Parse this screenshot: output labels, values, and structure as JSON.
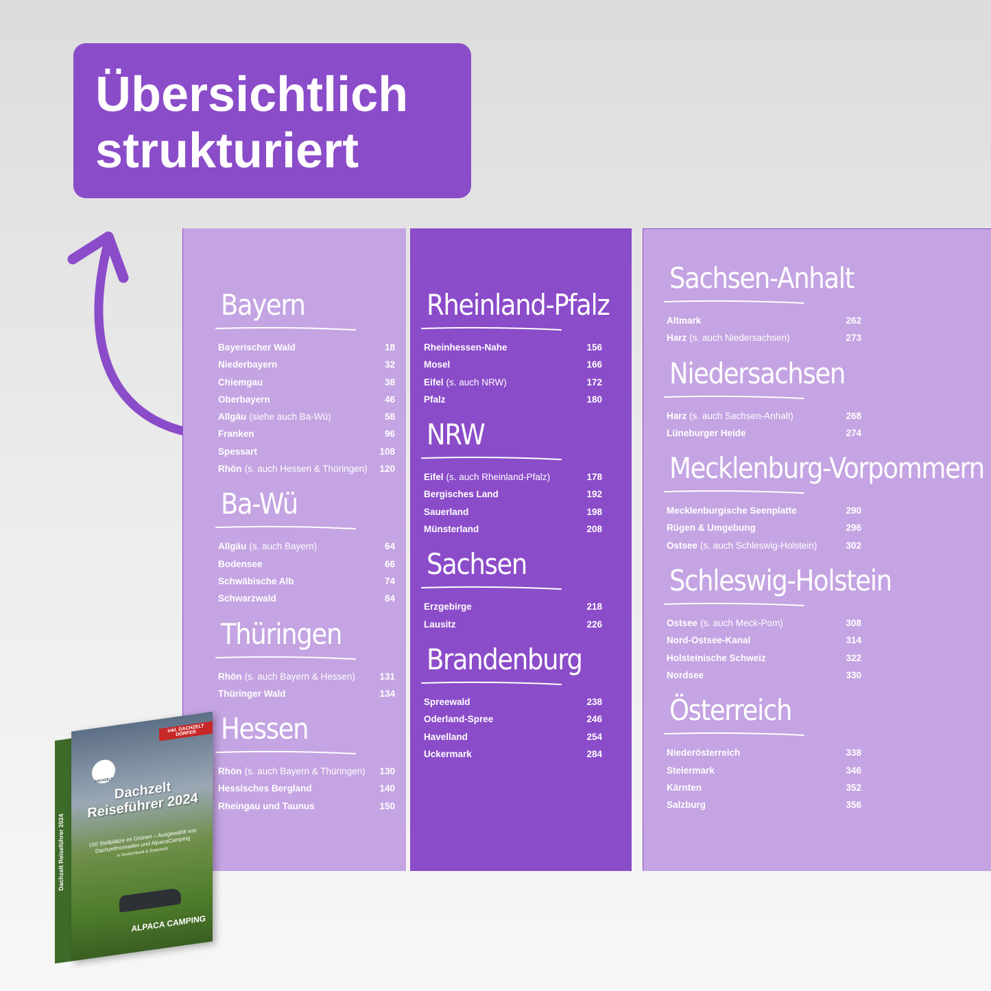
{
  "headline": {
    "line1": "Übersichtlich",
    "line2": "strukturiert"
  },
  "columns": [
    {
      "sections": [
        {
          "title": "Bayern",
          "entries": [
            {
              "name": "Bayerischer Wald",
              "page": 18
            },
            {
              "name": "Niederbayern",
              "page": 32
            },
            {
              "name": "Chiemgau",
              "page": 38
            },
            {
              "name": "Oberbayern",
              "page": 46
            },
            {
              "name": "Allgäu",
              "note": "(siehe auch Ba-Wü)",
              "page": 58
            },
            {
              "name": "Franken",
              "page": 96
            },
            {
              "name": "Spessart",
              "page": 108
            },
            {
              "name": "Rhön",
              "note": "(s. auch Hessen & Thüringen)",
              "page": 120
            }
          ]
        },
        {
          "title": "Ba-Wü",
          "entries": [
            {
              "name": "Allgäu",
              "note": "(s. auch Bayern)",
              "page": 64
            },
            {
              "name": "Bodensee",
              "page": 66
            },
            {
              "name": "Schwäbische Alb",
              "page": 74
            },
            {
              "name": "Schwarzwald",
              "page": 84
            }
          ]
        },
        {
          "title": "Thüringen",
          "entries": [
            {
              "name": "Rhön",
              "note": "(s. auch Bayern & Hessen)",
              "page": 131
            },
            {
              "name": "Thüringer Wald",
              "page": 134
            }
          ]
        },
        {
          "title": "Hessen",
          "entries": [
            {
              "name": "Rhön",
              "note": "(s. auch Bayern & Thüringen)",
              "page": 130
            },
            {
              "name": "Hessisches Bergland",
              "page": 140
            },
            {
              "name": "Rheingau und Taunus",
              "page": 150
            }
          ]
        }
      ]
    },
    {
      "sections": [
        {
          "title": "Rheinland-Pfalz",
          "entries": [
            {
              "name": "Rheinhessen-Nahe",
              "page": 156
            },
            {
              "name": "Mosel",
              "page": 166
            },
            {
              "name": "Eifel",
              "note": "(s. auch NRW)",
              "page": 172
            },
            {
              "name": "Pfalz",
              "page": 180
            }
          ]
        },
        {
          "title": "NRW",
          "entries": [
            {
              "name": "Eifel",
              "note": "(s. auch Rheinland-Pfalz)",
              "page": 178
            },
            {
              "name": "Bergisches Land",
              "page": 192
            },
            {
              "name": "Sauerland",
              "page": 198
            },
            {
              "name": "Münsterland",
              "page": 208
            }
          ]
        },
        {
          "title": "Sachsen",
          "entries": [
            {
              "name": "Erzgebirge",
              "page": 218
            },
            {
              "name": "Lausitz",
              "page": 226
            }
          ]
        },
        {
          "title": "Brandenburg",
          "entries": [
            {
              "name": "Spreewald",
              "page": 238
            },
            {
              "name": "Oderland-Spree",
              "page": 246
            },
            {
              "name": "Havelland",
              "page": 254
            },
            {
              "name": "Uckermark",
              "page": 284
            }
          ]
        }
      ]
    },
    {
      "sections": [
        {
          "title": "Sachsen-Anhalt",
          "entries": [
            {
              "name": "Altmark",
              "page": 262
            },
            {
              "name": "Harz",
              "note": "(s. auch Niedersachsen)",
              "page": 273
            }
          ]
        },
        {
          "title": "Niedersachsen",
          "entries": [
            {
              "name": "Harz",
              "note": "(s. auch Sachsen-Anhalt)",
              "page": 268
            },
            {
              "name": "Lüneburger Heide",
              "page": 274
            }
          ]
        },
        {
          "title": "Mecklenburg-Vorpommern",
          "entries": [
            {
              "name": "Mecklenburgische Seenplatte",
              "page": 290
            },
            {
              "name": "Rügen & Umgebung",
              "page": 296
            },
            {
              "name": "Ostsee",
              "note": "(s. auch Schleswig-Holstein)",
              "page": 302
            }
          ]
        },
        {
          "title": "Schleswig-Holstein",
          "entries": [
            {
              "name": "Ostsee",
              "note": "(s. auch Meck-Pom)",
              "page": 308
            },
            {
              "name": "Nord-Ostsee-Kanal",
              "page": 314
            },
            {
              "name": "Holsteinische Schweiz",
              "page": 322
            },
            {
              "name": "Nordsee",
              "page": 330
            }
          ]
        },
        {
          "title": "Österreich",
          "entries": [
            {
              "name": "Niederösterreich",
              "page": 338
            },
            {
              "name": "Steiermark",
              "page": 346
            },
            {
              "name": "Kärnten",
              "page": 352
            },
            {
              "name": "Salzburg",
              "page": 356
            }
          ]
        }
      ]
    }
  ],
  "book": {
    "ribbon": "inkl. DACHZELT DÖRFER",
    "logo": "DACHZELT",
    "title": "Dachzelt Reiseführer 2024",
    "subtitle": "150 Stellplätze im Grünen – Ausgewählt von Dachzeltnomaden und AlpacaCamping",
    "region": "in Deutschland & Österreich",
    "spine": "Dachzelt Reiseführer 2024",
    "brand": "ALPACA CAMPING"
  }
}
